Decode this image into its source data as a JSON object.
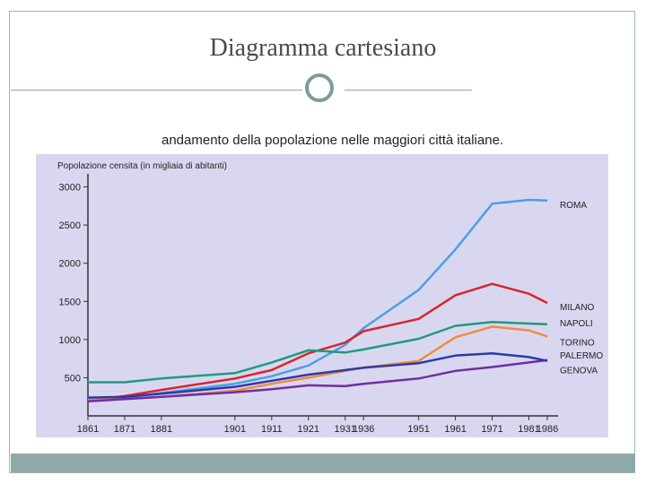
{
  "slide": {
    "title": "Diagramma cartesiano"
  },
  "chart_data": {
    "type": "line",
    "title": "andamento della popolazione nelle maggiori città italiane.",
    "ylabel": "Popolazione censita (in migliaia di abitanti)",
    "xlabel": "",
    "x": [
      "1861",
      "1871",
      "1881",
      "1901",
      "1911",
      "1921",
      "1931",
      "1936",
      "1951",
      "1961",
      "1971",
      "1981",
      "1986"
    ],
    "x_values": [
      1861,
      1871,
      1881,
      1901,
      1911,
      1921,
      1931,
      1936,
      1951,
      1961,
      1971,
      1981,
      1986
    ],
    "yticks": [
      500,
      1000,
      1500,
      2000,
      2500,
      3000
    ],
    "ylim": [
      0,
      3100
    ],
    "xlim": [
      1861,
      1986
    ],
    "grid": false,
    "legend": "right",
    "colors": {
      "background": "#d9d7f0",
      "axis": "#333333"
    },
    "series": [
      {
        "name": "ROMA",
        "color": "#4a9fe8",
        "values": [
          200,
          240,
          300,
          420,
          520,
          660,
          930,
          1150,
          1650,
          2180,
          2780,
          2830,
          2820
        ]
      },
      {
        "name": "MILANO",
        "color": "#d9262a",
        "values": [
          200,
          260,
          340,
          490,
          600,
          820,
          960,
          1110,
          1270,
          1580,
          1730,
          1600,
          1480
        ]
      },
      {
        "name": "NAPOLI",
        "color": "#1f9a7c",
        "values": [
          440,
          440,
          490,
          560,
          700,
          860,
          830,
          870,
          1010,
          1180,
          1230,
          1210,
          1200
        ]
      },
      {
        "name": "TORINO",
        "color": "#ee8d3b",
        "values": [
          210,
          220,
          250,
          330,
          420,
          500,
          590,
          630,
          720,
          1030,
          1170,
          1120,
          1040
        ]
      },
      {
        "name": "PALERMO",
        "color": "#6f2fa5",
        "values": [
          190,
          220,
          250,
          310,
          350,
          400,
          390,
          420,
          490,
          590,
          640,
          700,
          730
        ]
      },
      {
        "name": "GENOVA",
        "color": "#2b3aa8",
        "values": [
          240,
          250,
          290,
          380,
          460,
          540,
          600,
          630,
          690,
          790,
          820,
          770,
          720
        ]
      }
    ]
  }
}
